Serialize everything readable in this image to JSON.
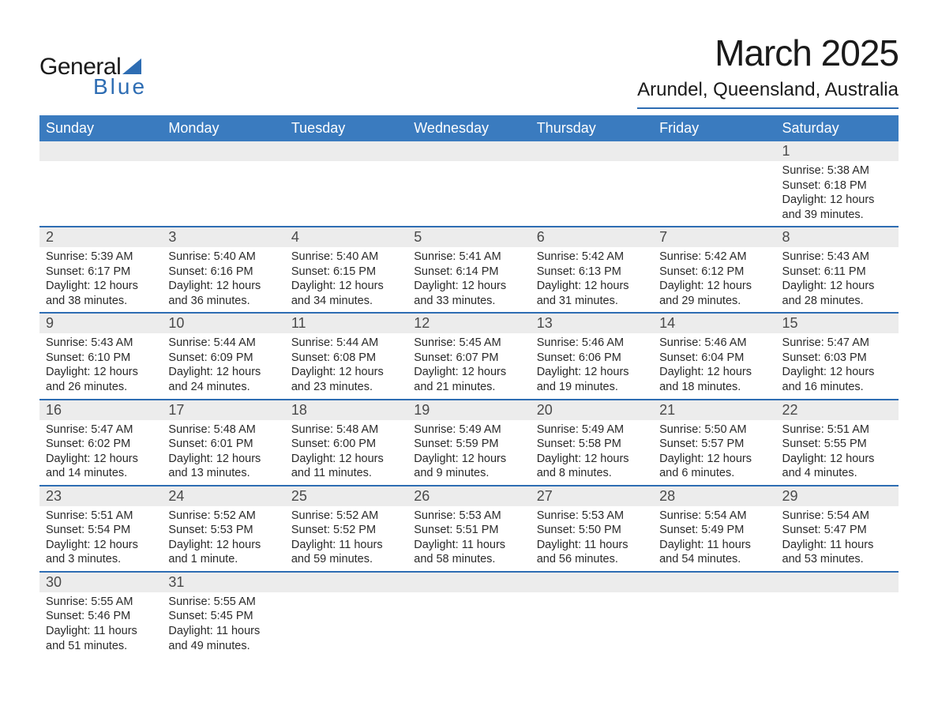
{
  "logo": {
    "line1": "General",
    "line2": "Blue"
  },
  "title": "March 2025",
  "location": "Arundel, Queensland, Australia",
  "colors": {
    "header_bg": "#3a7bbf",
    "rule": "#2e6db3",
    "daynum_bg": "#ececec",
    "text": "#2a2a2a"
  },
  "fonts": {
    "title_size_pt": 34,
    "location_size_pt": 18,
    "dow_size_pt": 14,
    "daynum_size_pt": 14,
    "body_size_pt": 11
  },
  "days_of_week": [
    "Sunday",
    "Monday",
    "Tuesday",
    "Wednesday",
    "Thursday",
    "Friday",
    "Saturday"
  ],
  "grid": {
    "first_day_column": 6,
    "weeks": 6
  },
  "days": [
    {
      "n": 1,
      "sunrise": "5:38 AM",
      "sunset": "6:18 PM",
      "dl_h": 12,
      "dl_m": 39
    },
    {
      "n": 2,
      "sunrise": "5:39 AM",
      "sunset": "6:17 PM",
      "dl_h": 12,
      "dl_m": 38
    },
    {
      "n": 3,
      "sunrise": "5:40 AM",
      "sunset": "6:16 PM",
      "dl_h": 12,
      "dl_m": 36
    },
    {
      "n": 4,
      "sunrise": "5:40 AM",
      "sunset": "6:15 PM",
      "dl_h": 12,
      "dl_m": 34
    },
    {
      "n": 5,
      "sunrise": "5:41 AM",
      "sunset": "6:14 PM",
      "dl_h": 12,
      "dl_m": 33
    },
    {
      "n": 6,
      "sunrise": "5:42 AM",
      "sunset": "6:13 PM",
      "dl_h": 12,
      "dl_m": 31
    },
    {
      "n": 7,
      "sunrise": "5:42 AM",
      "sunset": "6:12 PM",
      "dl_h": 12,
      "dl_m": 29
    },
    {
      "n": 8,
      "sunrise": "5:43 AM",
      "sunset": "6:11 PM",
      "dl_h": 12,
      "dl_m": 28
    },
    {
      "n": 9,
      "sunrise": "5:43 AM",
      "sunset": "6:10 PM",
      "dl_h": 12,
      "dl_m": 26
    },
    {
      "n": 10,
      "sunrise": "5:44 AM",
      "sunset": "6:09 PM",
      "dl_h": 12,
      "dl_m": 24
    },
    {
      "n": 11,
      "sunrise": "5:44 AM",
      "sunset": "6:08 PM",
      "dl_h": 12,
      "dl_m": 23
    },
    {
      "n": 12,
      "sunrise": "5:45 AM",
      "sunset": "6:07 PM",
      "dl_h": 12,
      "dl_m": 21
    },
    {
      "n": 13,
      "sunrise": "5:46 AM",
      "sunset": "6:06 PM",
      "dl_h": 12,
      "dl_m": 19
    },
    {
      "n": 14,
      "sunrise": "5:46 AM",
      "sunset": "6:04 PM",
      "dl_h": 12,
      "dl_m": 18
    },
    {
      "n": 15,
      "sunrise": "5:47 AM",
      "sunset": "6:03 PM",
      "dl_h": 12,
      "dl_m": 16
    },
    {
      "n": 16,
      "sunrise": "5:47 AM",
      "sunset": "6:02 PM",
      "dl_h": 12,
      "dl_m": 14
    },
    {
      "n": 17,
      "sunrise": "5:48 AM",
      "sunset": "6:01 PM",
      "dl_h": 12,
      "dl_m": 13
    },
    {
      "n": 18,
      "sunrise": "5:48 AM",
      "sunset": "6:00 PM",
      "dl_h": 12,
      "dl_m": 11
    },
    {
      "n": 19,
      "sunrise": "5:49 AM",
      "sunset": "5:59 PM",
      "dl_h": 12,
      "dl_m": 9
    },
    {
      "n": 20,
      "sunrise": "5:49 AM",
      "sunset": "5:58 PM",
      "dl_h": 12,
      "dl_m": 8
    },
    {
      "n": 21,
      "sunrise": "5:50 AM",
      "sunset": "5:57 PM",
      "dl_h": 12,
      "dl_m": 6
    },
    {
      "n": 22,
      "sunrise": "5:51 AM",
      "sunset": "5:55 PM",
      "dl_h": 12,
      "dl_m": 4
    },
    {
      "n": 23,
      "sunrise": "5:51 AM",
      "sunset": "5:54 PM",
      "dl_h": 12,
      "dl_m": 3
    },
    {
      "n": 24,
      "sunrise": "5:52 AM",
      "sunset": "5:53 PM",
      "dl_h": 12,
      "dl_m": 1
    },
    {
      "n": 25,
      "sunrise": "5:52 AM",
      "sunset": "5:52 PM",
      "dl_h": 11,
      "dl_m": 59
    },
    {
      "n": 26,
      "sunrise": "5:53 AM",
      "sunset": "5:51 PM",
      "dl_h": 11,
      "dl_m": 58
    },
    {
      "n": 27,
      "sunrise": "5:53 AM",
      "sunset": "5:50 PM",
      "dl_h": 11,
      "dl_m": 56
    },
    {
      "n": 28,
      "sunrise": "5:54 AM",
      "sunset": "5:49 PM",
      "dl_h": 11,
      "dl_m": 54
    },
    {
      "n": 29,
      "sunrise": "5:54 AM",
      "sunset": "5:47 PM",
      "dl_h": 11,
      "dl_m": 53
    },
    {
      "n": 30,
      "sunrise": "5:55 AM",
      "sunset": "5:46 PM",
      "dl_h": 11,
      "dl_m": 51
    },
    {
      "n": 31,
      "sunrise": "5:55 AM",
      "sunset": "5:45 PM",
      "dl_h": 11,
      "dl_m": 49
    }
  ],
  "label_templates": {
    "sunrise": "Sunrise: ",
    "sunset": "Sunset: ",
    "daylight_prefix": "Daylight: ",
    "hours_word": " hours",
    "and_word": "and ",
    "minute_word": " minute.",
    "minutes_word": " minutes."
  }
}
